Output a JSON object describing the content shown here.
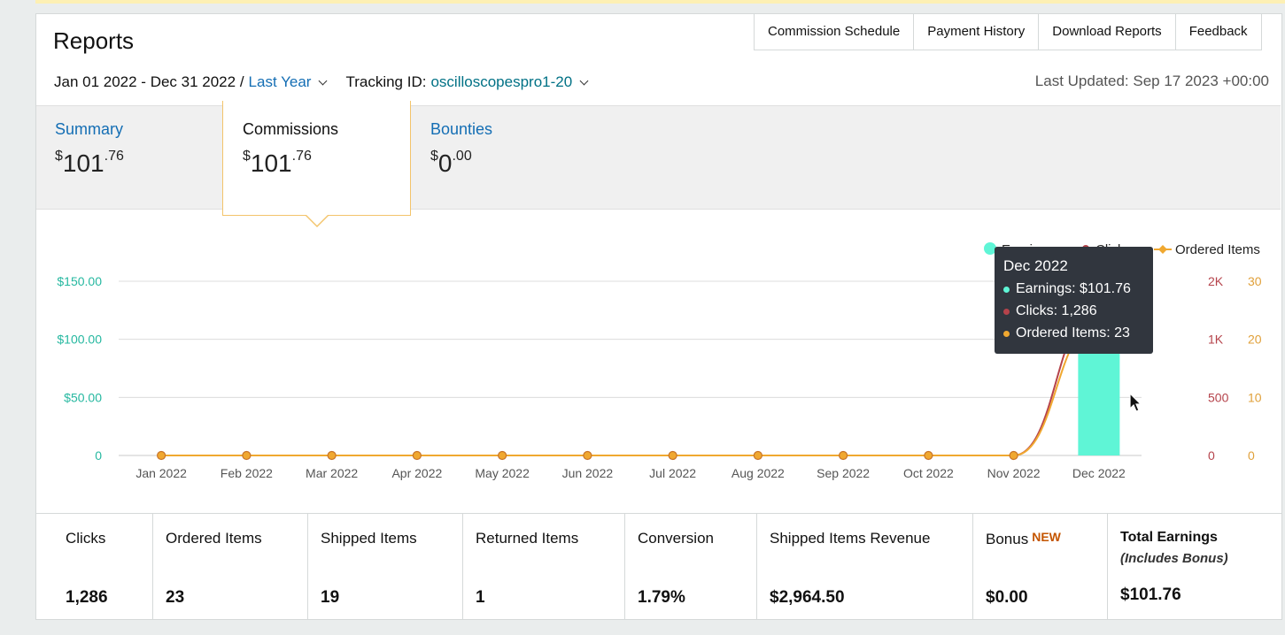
{
  "header": {
    "title": "Reports",
    "tabs": [
      "Commission Schedule",
      "Payment History",
      "Download Reports",
      "Feedback"
    ],
    "date_range": "Jan 01 2022 - Dec 31 2022 /",
    "date_preset": "Last Year",
    "tracking_label": "Tracking ID:",
    "tracking_id": "oscilloscopespro1-20",
    "last_updated": "Last Updated: Sep 17 2023 +00:00"
  },
  "summary_tabs": [
    {
      "label": "Summary",
      "currency": "$",
      "whole": "101",
      "cents": ".76"
    },
    {
      "label": "Commissions",
      "currency": "$",
      "whole": "101",
      "cents": ".76"
    },
    {
      "label": "Bounties",
      "currency": "$",
      "whole": "0",
      "cents": ".00"
    }
  ],
  "legend": {
    "earnings": "Earnings",
    "clicks": "Clicks",
    "ordered": "Ordered Items"
  },
  "tooltip": {
    "title": "Dec 2022",
    "earnings": "Earnings: $101.76",
    "clicks": "Clicks: 1,286",
    "ordered": "Ordered Items: 23"
  },
  "metrics": [
    {
      "label": "Clicks",
      "value": "1,286"
    },
    {
      "label": "Ordered Items",
      "value": "23"
    },
    {
      "label": "Shipped Items",
      "value": "19"
    },
    {
      "label": "Returned Items",
      "value": "1"
    },
    {
      "label": "Conversion",
      "value": "1.79%"
    },
    {
      "label": "Shipped Items Revenue",
      "value": "$2,964.50"
    },
    {
      "label": "Bonus",
      "badge": "NEW",
      "value": "$0.00"
    },
    {
      "label": "Total Earnings",
      "sublabel": "(Includes Bonus)",
      "value": "$101.76"
    }
  ],
  "colors": {
    "earnings": "#5ff5d6",
    "clicks": "#b5434b",
    "ordered": "#f0a830",
    "link": "#146eb4",
    "teal_text": "#007185",
    "tooltip_bg": "#31363e"
  },
  "chart_data": {
    "type": "bar",
    "categories": [
      "Jan 2022",
      "Feb 2022",
      "Mar 2022",
      "Apr 2022",
      "May 2022",
      "Jun 2022",
      "Jul 2022",
      "Aug 2022",
      "Sep 2022",
      "Oct 2022",
      "Nov 2022",
      "Dec 2022"
    ],
    "series": [
      {
        "name": "Earnings",
        "type": "bar",
        "axis": "left",
        "values": [
          0,
          0,
          0,
          0,
          0,
          0,
          0,
          0,
          0,
          0,
          0,
          101.76
        ]
      },
      {
        "name": "Clicks",
        "type": "line",
        "axis": "right1",
        "values": [
          0,
          0,
          0,
          0,
          0,
          0,
          0,
          0,
          0,
          0,
          0,
          1286
        ]
      },
      {
        "name": "Ordered Items",
        "type": "line",
        "axis": "right2",
        "values": [
          0,
          0,
          0,
          0,
          0,
          0,
          0,
          0,
          0,
          0,
          0,
          23
        ]
      }
    ],
    "y_left": {
      "ticks": [
        "0",
        "$50.00",
        "$100.00",
        "$150.00"
      ],
      "range": [
        0,
        150
      ]
    },
    "y_right1": {
      "ticks": [
        "0",
        "500",
        "1K",
        "2K"
      ],
      "tick_values": [
        0,
        500,
        1000,
        1500
      ]
    },
    "y_right2": {
      "ticks": [
        "0",
        "10",
        "20",
        "30"
      ],
      "range": [
        0,
        30
      ]
    },
    "grid": true,
    "legend_position": "top-right"
  }
}
